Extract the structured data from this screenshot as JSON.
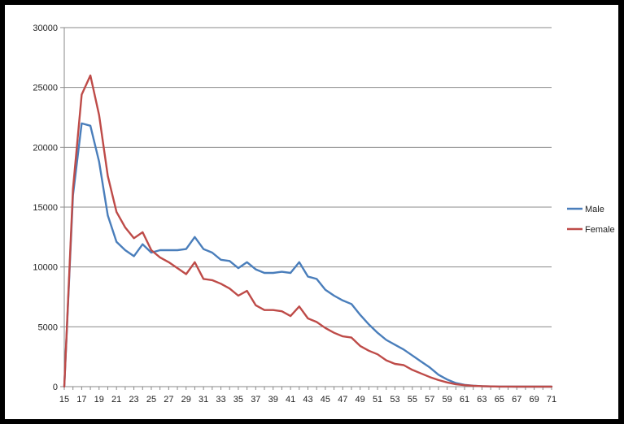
{
  "chart_data": {
    "type": "line",
    "title": "",
    "xlabel": "",
    "ylabel": "",
    "ylim": [
      0,
      30000
    ],
    "yticks": [
      0,
      5000,
      10000,
      15000,
      20000,
      25000,
      30000
    ],
    "xlim": [
      15,
      71
    ],
    "xticks": [
      15,
      17,
      19,
      21,
      23,
      25,
      27,
      29,
      31,
      33,
      35,
      37,
      39,
      41,
      43,
      45,
      47,
      49,
      51,
      53,
      55,
      57,
      59,
      61,
      63,
      65,
      67,
      69,
      71
    ],
    "grid": "horizontal",
    "legend_position": "right",
    "x": [
      15,
      16,
      17,
      18,
      19,
      20,
      21,
      22,
      23,
      24,
      25,
      26,
      27,
      28,
      29,
      30,
      31,
      32,
      33,
      34,
      35,
      36,
      37,
      38,
      39,
      40,
      41,
      42,
      43,
      44,
      45,
      46,
      47,
      48,
      49,
      50,
      51,
      52,
      53,
      54,
      55,
      56,
      57,
      58,
      59,
      60,
      61,
      62,
      63,
      64,
      65,
      66,
      67,
      68,
      69,
      70,
      71
    ],
    "series": [
      {
        "name": "Male",
        "color": "#4a7ebb",
        "values": [
          0,
          16000,
          22000,
          21800,
          18800,
          14300,
          12100,
          11400,
          10900,
          11900,
          11200,
          11400,
          11400,
          11400,
          11500,
          12500,
          11500,
          11200,
          10600,
          10500,
          9900,
          10400,
          9800,
          9500,
          9500,
          9600,
          9500,
          10400,
          9200,
          9000,
          8100,
          7600,
          7200,
          6900,
          6000,
          5200,
          4500,
          3900,
          3500,
          3100,
          2600,
          2100,
          1600,
          1000,
          600,
          300,
          150,
          80,
          40,
          20,
          10,
          5,
          0,
          0,
          0,
          0,
          0
        ]
      },
      {
        "name": "Female",
        "color": "#be4b48",
        "values": [
          0,
          16500,
          24400,
          26000,
          22700,
          17600,
          14600,
          13300,
          12400,
          12900,
          11400,
          10800,
          10400,
          9900,
          9400,
          10400,
          9000,
          8900,
          8600,
          8200,
          7600,
          8000,
          6800,
          6400,
          6400,
          6300,
          5900,
          6700,
          5700,
          5400,
          4900,
          4500,
          4200,
          4100,
          3400,
          3000,
          2700,
          2200,
          1900,
          1800,
          1400,
          1100,
          800,
          550,
          350,
          200,
          120,
          70,
          40,
          20,
          10,
          5,
          0,
          0,
          0,
          0,
          0
        ]
      }
    ]
  }
}
